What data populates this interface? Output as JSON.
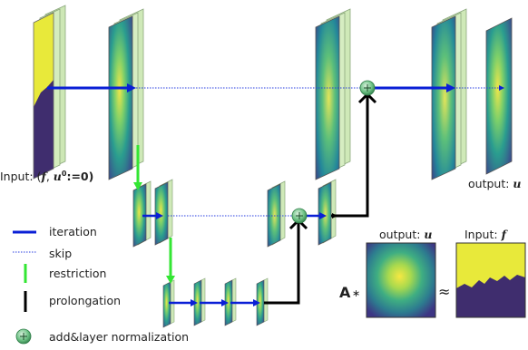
{
  "labels": {
    "input_prefix": "Input: (",
    "input_f": "f",
    "input_sep": ", ",
    "input_u": "u",
    "input_sup": "0",
    "input_suffix": ":=0)",
    "output_main_text": "output: ",
    "output_main_u": "u",
    "output_small_text": "output: ",
    "output_small_u": "u",
    "input_small_text": "Input: ",
    "input_small_f": "f",
    "operator_a": "A",
    "operator_star": "∗",
    "approx": "≈"
  },
  "legend": {
    "iteration": "iteration",
    "skip": "skip",
    "restriction": "restriction",
    "prolongation": "prolongation",
    "add_norm": "add&layer normalization"
  },
  "colors": {
    "iteration": "#0a1fd6",
    "skip": "#2a3fe0",
    "restriction": "#33e633",
    "prolongation": "#000000",
    "add_node": "#4caf6a",
    "frame_green": "#cfe9b8",
    "frame_yellow": "#e8e93a"
  },
  "icons": {
    "add_node": "circle-plus-icon"
  }
}
